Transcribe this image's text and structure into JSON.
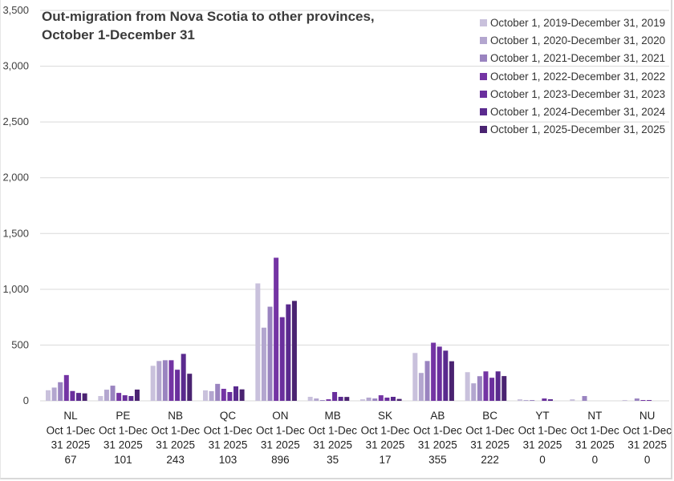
{
  "chart_data": {
    "type": "bar",
    "title": "Out-migration from Nova Scotia to other provinces, October 1-December 31",
    "title_lines": [
      "Out-migration from Nova Scotia to other provinces,",
      "October 1-December 31"
    ],
    "xlabel": "",
    "ylabel": "",
    "ylim": [
      0,
      3500
    ],
    "yticks": [
      0,
      500,
      1000,
      1500,
      2000,
      2500,
      3000,
      3500
    ],
    "ytick_labels": [
      "0",
      "500",
      "1,000",
      "1,500",
      "2,000",
      "2,500",
      "3,000",
      "3,500"
    ],
    "grid": true,
    "legend_position": "top-right",
    "categories": [
      "NL",
      "PE",
      "NB",
      "QC",
      "ON",
      "MB",
      "SK",
      "AB",
      "BC",
      "YT",
      "NT",
      "NU"
    ],
    "category_sublabels": [
      [
        "Oct 1-Dec",
        "31 2025",
        "67"
      ],
      [
        "Oct 1-Dec",
        "31 2025",
        "101"
      ],
      [
        "Oct 1-Dec",
        "31 2025",
        "243"
      ],
      [
        "Oct 1-Dec",
        "31 2025",
        "103"
      ],
      [
        "Oct 1-Dec",
        "31 2025",
        "896"
      ],
      [
        "Oct 1-Dec",
        "31 2025",
        "35"
      ],
      [
        "Oct 1-Dec",
        "31 2025",
        "17"
      ],
      [
        "Oct 1-Dec",
        "31 2025",
        "355"
      ],
      [
        "Oct 1-Dec",
        "31 2025",
        "222"
      ],
      [
        "Oct 1-Dec",
        "31 2025",
        "0"
      ],
      [
        "Oct 1-Dec",
        "31 2025",
        "0"
      ],
      [
        "Oct 1-Dec",
        "31 2025",
        "0"
      ]
    ],
    "series": [
      {
        "name": "October 1, 2019-December 31, 2019",
        "color": "#c9c1dc",
        "values": [
          95,
          43,
          314,
          94,
          1053,
          36,
          14,
          429,
          257,
          14,
          14,
          7
        ]
      },
      {
        "name": "October 1, 2020-December 31, 2020",
        "color": "#b3a6cf",
        "values": [
          119,
          100,
          357,
          87,
          656,
          21,
          29,
          250,
          157,
          7,
          0,
          0
        ]
      },
      {
        "name": "October 1, 2021-December 31, 2021",
        "color": "#9a84c0",
        "values": [
          167,
          136,
          364,
          152,
          844,
          7,
          21,
          357,
          221,
          7,
          43,
          21
        ]
      },
      {
        "name": "October 1, 2022-December 31, 2022",
        "color": "#7434a4",
        "values": [
          231,
          71,
          364,
          108,
          1283,
          14,
          50,
          521,
          264,
          0,
          0,
          7
        ]
      },
      {
        "name": "October 1, 2023-December 31, 2023",
        "color": "#6a2f9d",
        "values": [
          88,
          50,
          279,
          79,
          750,
          79,
          29,
          486,
          207,
          21,
          0,
          7
        ]
      },
      {
        "name": "October 1, 2024-December 31, 2024",
        "color": "#5a2a8e",
        "values": [
          71,
          43,
          421,
          130,
          865,
          36,
          36,
          450,
          264,
          14,
          0,
          0
        ]
      },
      {
        "name": "October 1, 2025-December 31, 2025",
        "color": "#4a2371",
        "values": [
          67,
          101,
          243,
          103,
          896,
          35,
          17,
          355,
          222,
          0,
          0,
          0
        ]
      }
    ]
  },
  "colors": {
    "gridline": "#d9d9d9",
    "axis_text": "#404040",
    "title_text": "#3b3b3b"
  }
}
